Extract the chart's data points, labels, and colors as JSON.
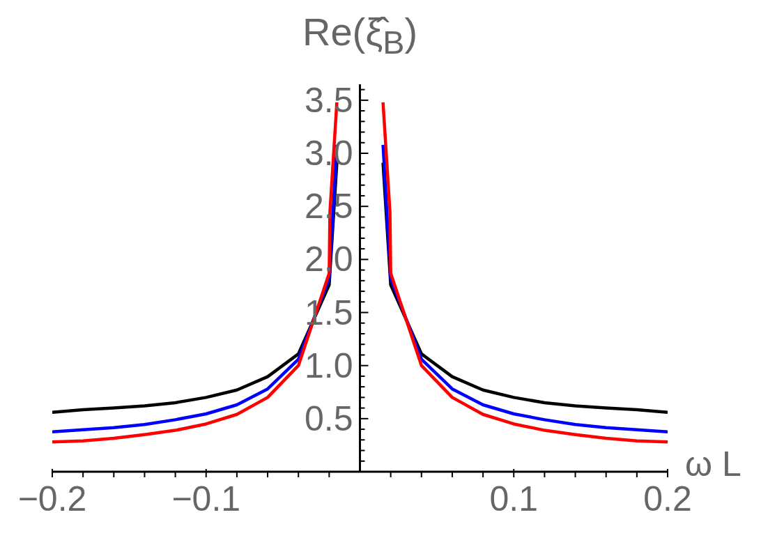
{
  "chart_data": {
    "type": "line",
    "xlabel": "ω L",
    "ylabel": "Re(ξ̂$_{B}$)",
    "x": [
      -0.2,
      -0.18,
      -0.16,
      -0.14,
      -0.12,
      -0.1,
      -0.08,
      -0.06,
      -0.04,
      -0.02,
      -0.015,
      0,
      0.015,
      0.02,
      0.04,
      0.06,
      0.08,
      0.1,
      0.12,
      0.14,
      0.16,
      0.18,
      0.2
    ],
    "series": [
      {
        "color": "#000000",
        "values": [
          0.56,
          0.585,
          0.6,
          0.62,
          0.65,
          0.7,
          0.77,
          0.895,
          1.11,
          1.76,
          2.91,
          null,
          2.91,
          1.76,
          1.11,
          0.895,
          0.77,
          0.7,
          0.65,
          0.62,
          0.6,
          0.585,
          0.56
        ]
      },
      {
        "color": "#0000ff",
        "values": [
          0.375,
          0.395,
          0.415,
          0.445,
          0.49,
          0.545,
          0.63,
          0.78,
          1.06,
          1.82,
          3.08,
          null,
          3.08,
          1.82,
          1.06,
          0.78,
          0.63,
          0.545,
          0.49,
          0.445,
          0.415,
          0.395,
          0.375
        ]
      },
      {
        "color": "#ff0000",
        "x": [
          -0.2,
          -0.18,
          -0.16,
          -0.14,
          -0.12,
          -0.1,
          -0.08,
          -0.06,
          -0.04,
          -0.02,
          -0.0195,
          -0.015,
          0,
          0.015,
          0.0195,
          0.02,
          0.04,
          0.06,
          0.08,
          0.1,
          0.12,
          0.14,
          0.16,
          0.18,
          0.2
        ],
        "values": [
          0.28,
          0.29,
          0.315,
          0.35,
          0.39,
          0.45,
          0.54,
          0.7,
          1.0,
          1.87,
          2.45,
          3.48,
          null,
          3.48,
          2.45,
          1.87,
          1.0,
          0.7,
          0.54,
          0.45,
          0.39,
          0.35,
          0.315,
          0.29,
          0.28
        ]
      }
    ],
    "xlim": [
      -0.2,
      0.2
    ],
    "ylim": [
      0,
      3.65
    ],
    "xticks": [
      -0.2,
      {
        "value": -0.18,
        "label": null
      },
      {
        "value": -0.16,
        "label": null
      },
      {
        "value": -0.14,
        "label": null
      },
      {
        "value": -0.12,
        "label": null
      },
      -0.1,
      {
        "value": -0.08,
        "label": null
      },
      {
        "value": -0.06,
        "label": null
      },
      {
        "value": -0.04,
        "label": null
      },
      {
        "value": -0.02,
        "label": null
      },
      {
        "value": 0.02,
        "label": null
      },
      {
        "value": 0.04,
        "label": null
      },
      {
        "value": 0.06,
        "label": null
      },
      {
        "value": 0.08,
        "label": null
      },
      0.1,
      {
        "value": 0.12,
        "label": null
      },
      {
        "value": 0.14,
        "label": null
      },
      {
        "value": 0.16,
        "label": null
      },
      {
        "value": 0.18,
        "label": null
      },
      0.2
    ],
    "yticks": [
      {
        "value": 0.1,
        "label": null
      },
      {
        "value": 0.2,
        "label": null
      },
      {
        "value": 0.3,
        "label": null
      },
      {
        "value": 0.4,
        "label": null
      },
      0.5,
      {
        "value": 0.6,
        "label": null
      },
      {
        "value": 0.7,
        "label": null
      },
      {
        "value": 0.8,
        "label": null
      },
      {
        "value": 0.9,
        "label": null
      },
      {
        "value": 1.0,
        "label": "1.0"
      },
      {
        "value": 1.1,
        "label": null
      },
      {
        "value": 1.2,
        "label": null
      },
      {
        "value": 1.3,
        "label": null
      },
      {
        "value": 1.4,
        "label": null
      },
      1.5,
      {
        "value": 1.6,
        "label": null
      },
      {
        "value": 1.7,
        "label": null
      },
      {
        "value": 1.8,
        "label": null
      },
      {
        "value": 1.9,
        "label": null
      },
      {
        "value": 2.0,
        "label": "2.0"
      },
      {
        "value": 2.1,
        "label": null
      },
      {
        "value": 2.2,
        "label": null
      },
      {
        "value": 2.3,
        "label": null
      },
      {
        "value": 2.4,
        "label": null
      },
      2.5,
      {
        "value": 2.6,
        "label": null
      },
      {
        "value": 2.7,
        "label": null
      },
      {
        "value": 2.8,
        "label": null
      },
      {
        "value": 2.9,
        "label": null
      },
      {
        "value": 3.0,
        "label": "3.0"
      },
      {
        "value": 3.1,
        "label": null
      },
      {
        "value": 3.2,
        "label": null
      },
      {
        "value": 3.3,
        "label": null
      },
      {
        "value": 3.4,
        "label": null
      },
      3.5,
      {
        "value": 3.6,
        "label": null
      }
    ],
    "grid": false,
    "legend": false,
    "marker": "none",
    "line_style": "solid"
  }
}
